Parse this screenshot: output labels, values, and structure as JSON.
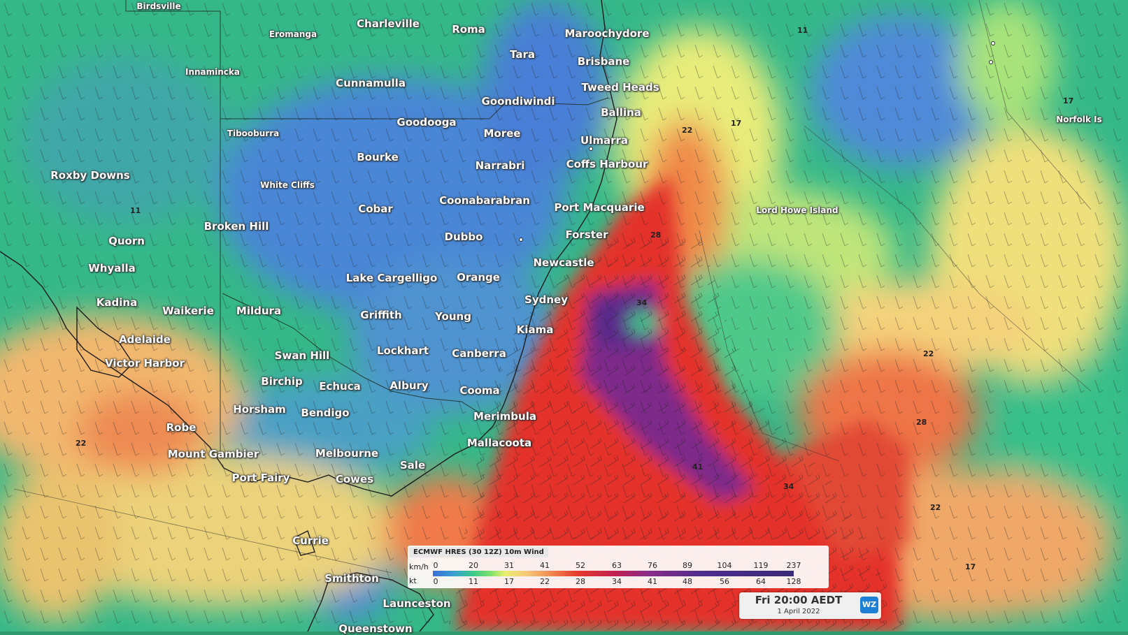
{
  "places": [
    {
      "name": "Birdsville",
      "size": "small"
    },
    {
      "name": "Charleville",
      "size": "big"
    },
    {
      "name": "Roma",
      "size": "big"
    },
    {
      "name": "Maroochydore",
      "size": "big"
    },
    {
      "name": "Eromanga",
      "size": "small"
    },
    {
      "name": "Tara",
      "size": "big"
    },
    {
      "name": "Brisbane",
      "size": "big"
    },
    {
      "name": "Innamincka",
      "size": "small"
    },
    {
      "name": "Cunnamulla",
      "size": "big"
    },
    {
      "name": "Goondiwindi",
      "size": "big"
    },
    {
      "name": "Tweed Heads",
      "size": "big"
    },
    {
      "name": "Ballina",
      "size": "big"
    },
    {
      "name": "Goodooga",
      "size": "big"
    },
    {
      "name": "Moree",
      "size": "big"
    },
    {
      "name": "Tibooburra",
      "size": "small"
    },
    {
      "name": "Ulmarra",
      "size": "big"
    },
    {
      "name": "Bourke",
      "size": "big"
    },
    {
      "name": "Narrabri",
      "size": "big"
    },
    {
      "name": "Coffs Harbour",
      "size": "big"
    },
    {
      "name": "Roxby Downs",
      "size": "big"
    },
    {
      "name": "White Cliffs",
      "size": "small"
    },
    {
      "name": "Coonabarabran",
      "size": "big"
    },
    {
      "name": "Cobar",
      "size": "big"
    },
    {
      "name": "Port Macquarie",
      "size": "big"
    },
    {
      "name": "Lord Howe Island",
      "size": "small"
    },
    {
      "name": "Norfolk Is",
      "size": "small"
    },
    {
      "name": "Broken Hill",
      "size": "big"
    },
    {
      "name": "Forster",
      "size": "big"
    },
    {
      "name": "Dubbo",
      "size": "big"
    },
    {
      "name": "Quorn",
      "size": "big"
    },
    {
      "name": "Newcastle",
      "size": "big"
    },
    {
      "name": "Whyalla",
      "size": "big"
    },
    {
      "name": "Lake Cargelligo",
      "size": "big"
    },
    {
      "name": "Orange",
      "size": "big"
    },
    {
      "name": "Sydney",
      "size": "big"
    },
    {
      "name": "Kadina",
      "size": "big"
    },
    {
      "name": "Waikerie",
      "size": "big"
    },
    {
      "name": "Mildura",
      "size": "big"
    },
    {
      "name": "Griffith",
      "size": "big"
    },
    {
      "name": "Young",
      "size": "big"
    },
    {
      "name": "Kiama",
      "size": "big"
    },
    {
      "name": "Adelaide",
      "size": "big"
    },
    {
      "name": "Lockhart",
      "size": "big"
    },
    {
      "name": "Canberra",
      "size": "big"
    },
    {
      "name": "Swan Hill",
      "size": "big"
    },
    {
      "name": "Victor Harbor",
      "size": "big"
    },
    {
      "name": "Birchip",
      "size": "big"
    },
    {
      "name": "Echuca",
      "size": "big"
    },
    {
      "name": "Albury",
      "size": "big"
    },
    {
      "name": "Cooma",
      "size": "big"
    },
    {
      "name": "Horsham",
      "size": "big"
    },
    {
      "name": "Bendigo",
      "size": "big"
    },
    {
      "name": "Merimbula",
      "size": "big"
    },
    {
      "name": "Robe",
      "size": "big"
    },
    {
      "name": "Mallacoota",
      "size": "big"
    },
    {
      "name": "Mount Gambier",
      "size": "big"
    },
    {
      "name": "Melbourne",
      "size": "big"
    },
    {
      "name": "Port Fairy",
      "size": "big"
    },
    {
      "name": "Cowes",
      "size": "big"
    },
    {
      "name": "Sale",
      "size": "big"
    },
    {
      "name": "Currie",
      "size": "big"
    },
    {
      "name": "Smithton",
      "size": "big"
    },
    {
      "name": "Launceston",
      "size": "big"
    },
    {
      "name": "Queenstown",
      "size": "big"
    }
  ],
  "contour_labels": [
    "11",
    "17",
    "22",
    "28",
    "34",
    "41"
  ],
  "legend": {
    "title": "ECMWF HRES (30 12Z) 10m Wind",
    "kmh_unit": "km/h",
    "kt_unit": "kt",
    "kmh_ticks": [
      "0",
      "20",
      "31",
      "41",
      "52",
      "63",
      "76",
      "89",
      "104",
      "119",
      "237"
    ],
    "kt_ticks": [
      "0",
      "11",
      "17",
      "22",
      "28",
      "34",
      "41",
      "48",
      "56",
      "64",
      "128"
    ]
  },
  "timebox": {
    "time": "Fri 20:00 AEDT",
    "date": "1 April 2022",
    "logo": "WZ"
  },
  "colors": {
    "calm_blue": "#3f7fd9",
    "light_green": "#39c98a",
    "yellow": "#eaf07a",
    "orange": "#f0884e",
    "red": "#e62b2b",
    "purple": "#7a2c8c"
  }
}
